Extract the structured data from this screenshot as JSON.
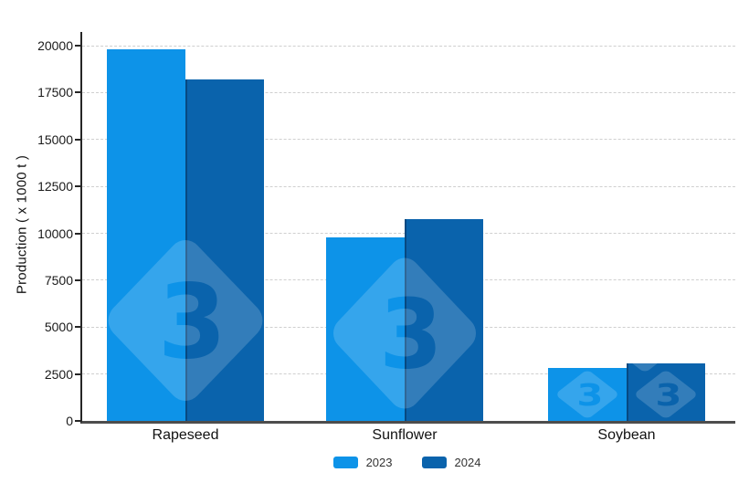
{
  "chart_data": {
    "type": "bar",
    "title": "",
    "categories": [
      "Rapeseed",
      "Sunflower",
      "Soybean"
    ],
    "series": [
      {
        "name": "2023",
        "color": "#0D93E8",
        "values": [
          19800,
          9800,
          2820
        ]
      },
      {
        "name": "2024",
        "color": "#0A63AC",
        "values": [
          18200,
          10750,
          3080
        ]
      }
    ],
    "xlabel": "",
    "ylabel": "Production ( x 1000 t )",
    "ylim": [
      0,
      20000
    ],
    "yticks": [
      0,
      2500,
      5000,
      7500,
      10000,
      12500,
      15000,
      17500,
      20000
    ],
    "grid": "horizontal-dashed",
    "grid_color": "#cfcfcf",
    "axis_color": "#4d4d4d",
    "legend_position": "bottom-center"
  },
  "watermark": {
    "glyph": "3",
    "shape": "rounded-diamond",
    "overlay_color": "rgba(255,255,255,0.17)"
  }
}
